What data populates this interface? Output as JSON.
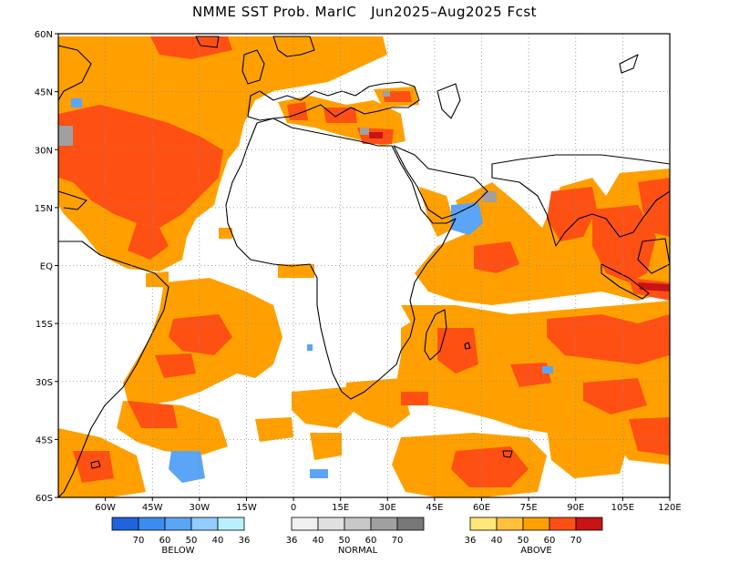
{
  "title": "NMME SST Prob. MarIC   Jun2025–Aug2025 Fcst",
  "map": {
    "lon_range": [
      -75,
      120
    ],
    "lat_range": [
      -60,
      60
    ],
    "lon_ticks": [
      "60W",
      "45W",
      "30W",
      "15W",
      "0",
      "15E",
      "30E",
      "45E",
      "60E",
      "75E",
      "90E",
      "105E",
      "120E"
    ],
    "lat_ticks": [
      "60N",
      "45N",
      "30N",
      "15N",
      "EQ",
      "15S",
      "30S",
      "45S",
      "60S"
    ],
    "grid": "dotted"
  },
  "legend": {
    "below": {
      "label": "BELOW",
      "ticks": [
        "70",
        "60",
        "50",
        "40",
        "36"
      ],
      "colors": [
        "#1f64dc",
        "#3c8cf0",
        "#5aa5f5",
        "#91cdff",
        "#b9f0ff"
      ]
    },
    "normal": {
      "label": "NORMAL",
      "ticks": [
        "36",
        "40",
        "50",
        "60",
        "70"
      ],
      "colors": [
        "#f0f0f0",
        "#e0e0e0",
        "#c8c8c8",
        "#a0a0a0",
        "#787878"
      ]
    },
    "above": {
      "label": "ABOVE",
      "ticks": [
        "36",
        "40",
        "50",
        "60",
        "70"
      ],
      "colors": [
        "#ffe878",
        "#ffc03c",
        "#ffa000",
        "#ff5014",
        "#c81414"
      ]
    }
  },
  "colors": {
    "above_50": "#ffa000",
    "above_60": "#ff5014",
    "above_70": "#c81414",
    "below_50": "#5aa5f5",
    "normal_60": "#a0a0a0"
  }
}
